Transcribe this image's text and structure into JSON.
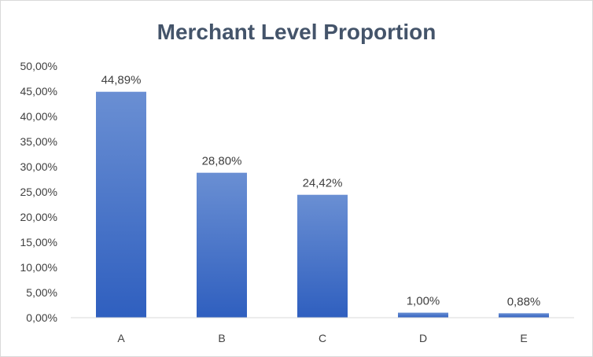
{
  "chart_data": {
    "type": "bar",
    "title": "Merchant Level Proportion",
    "categories": [
      "A",
      "B",
      "C",
      "D",
      "E"
    ],
    "values": [
      44.89,
      28.8,
      24.42,
      1.0,
      0.88
    ],
    "data_labels": [
      "44,89%",
      "28,80%",
      "24,42%",
      "1,00%",
      "0,88%"
    ],
    "ylim": [
      0,
      50
    ],
    "ytick_values": [
      0,
      5,
      10,
      15,
      20,
      25,
      30,
      35,
      40,
      45,
      50
    ],
    "ytick_labels": [
      "0,00%",
      "5,00%",
      "10,00%",
      "15,00%",
      "20,00%",
      "25,00%",
      "30,00%",
      "35,00%",
      "40,00%",
      "45,00%",
      "50,00%"
    ],
    "grid": false,
    "legend": "none",
    "bar_color_top": "#6a8fd3",
    "bar_color_bottom": "#2f5fbf"
  }
}
